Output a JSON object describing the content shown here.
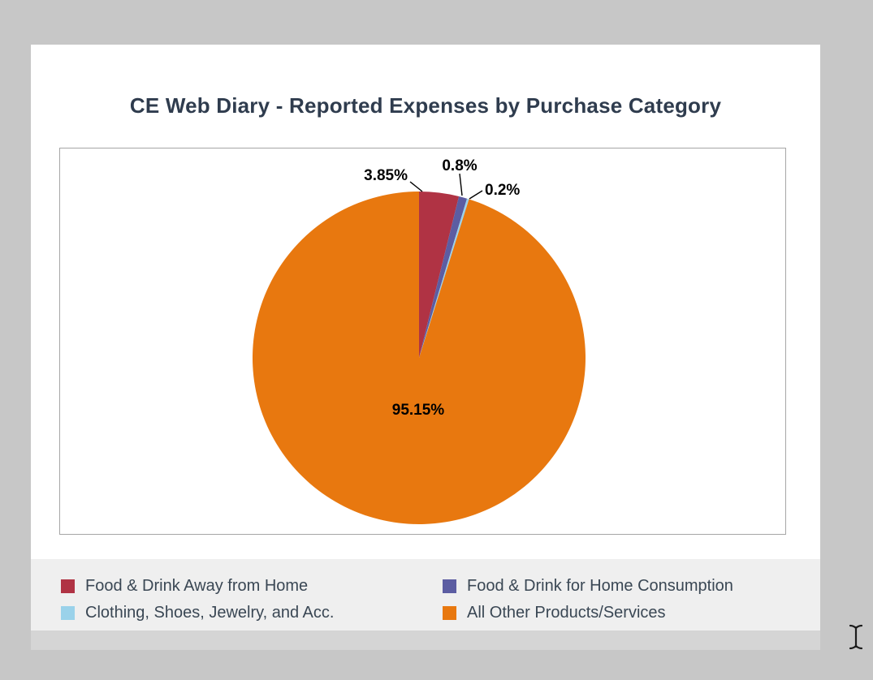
{
  "window": {
    "background_color": "#c7c7c7",
    "card_background": "#ffffff",
    "footer_band_color": "#d5d5d5"
  },
  "chart_data": {
    "type": "pie",
    "title": "CE Web Diary - Reported Expenses by Purchase Category",
    "title_color": "#2f3c4e",
    "slices": [
      {
        "name": "Food & Drink Away from Home",
        "value": 3.85,
        "label": "3.85%",
        "color": "#b03344"
      },
      {
        "name": "Food & Drink for Home Consumption",
        "value": 0.8,
        "label": "0.8%",
        "color": "#5c5da2"
      },
      {
        "name": "Clothing, Shoes, Jewelry, and Acc.",
        "value": 0.2,
        "label": "0.2%",
        "color": "#9ad2ea"
      },
      {
        "name": "All Other Products/Services",
        "value": 95.15,
        "label": "95.15%",
        "color": "#e8780f"
      }
    ],
    "start_angle_deg": 0,
    "direction": "clockwise",
    "legend_position": "bottom",
    "label_color": "#000000",
    "legend_text_color": "#3a4754",
    "legend_background": "#efefef",
    "plot_border_color": "#a6a6a6"
  },
  "cursor": {
    "style": "text-i-beam"
  }
}
